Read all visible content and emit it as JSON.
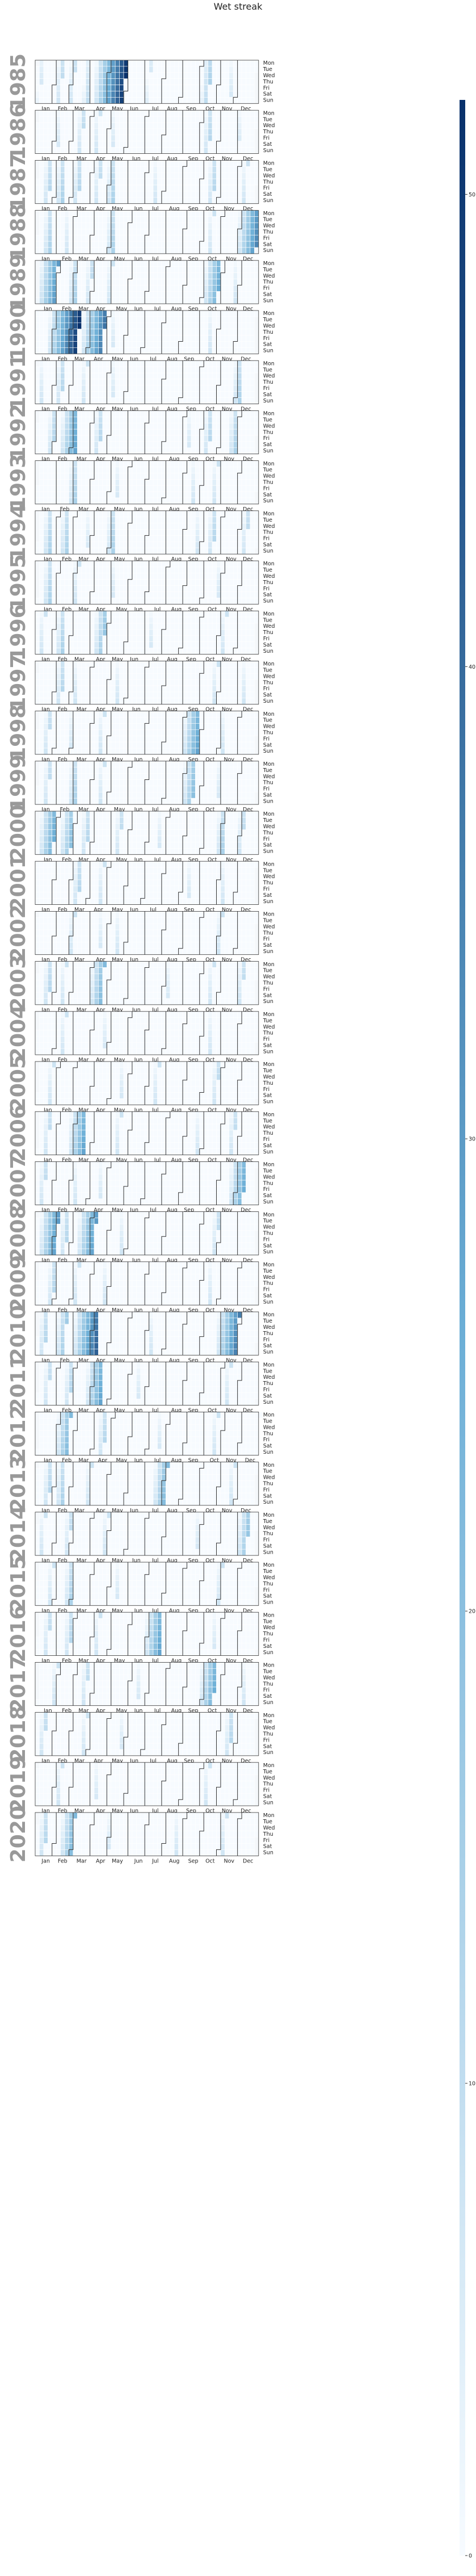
{
  "chart_data": {
    "type": "heatmap",
    "title": "Wet streak",
    "years": [
      1985,
      1986,
      1987,
      1988,
      1989,
      1990,
      1991,
      1992,
      1993,
      1994,
      1995,
      1996,
      1997,
      1998,
      1999,
      2000,
      2001,
      2002,
      2003,
      2004,
      2005,
      2006,
      2007,
      2008,
      2009,
      2010,
      2011,
      2012,
      2013,
      2014,
      2015,
      2016,
      2017,
      2018,
      2019,
      2020
    ],
    "month_labels": [
      "Jan",
      "Feb",
      "Mar",
      "Apr",
      "May",
      "Jun",
      "Jul",
      "Aug",
      "Sep",
      "Oct",
      "Nov",
      "Dec"
    ],
    "day_labels": [
      "Mon",
      "Tue",
      "Wed",
      "Thu",
      "Fri",
      "Sat",
      "Sun"
    ],
    "colorbar": {
      "min": 0,
      "max": 52,
      "ticks": [
        0,
        10,
        20,
        30,
        40,
        50
      ]
    },
    "colors": {
      "low": "#f7fbff",
      "mid": "#6baed6",
      "high": "#08306b",
      "year_label": "#999999",
      "month_border": "#333333"
    },
    "streaks": [
      {
        "year": 1985,
        "start": "1985-01-05",
        "length": 6
      },
      {
        "year": 1985,
        "start": "1985-02-04",
        "length": 10
      },
      {
        "year": 1985,
        "start": "1985-02-25",
        "length": 9
      },
      {
        "year": 1985,
        "start": "1985-03-22",
        "length": 10
      },
      {
        "year": 1985,
        "start": "1985-04-08",
        "length": 52
      },
      {
        "year": 1985,
        "start": "1985-07-04",
        "length": 6
      },
      {
        "year": 1985,
        "start": "1985-10-04",
        "length": 14
      },
      {
        "year": 1985,
        "start": "1985-11-18",
        "length": 6
      },
      {
        "year": 1986,
        "start": "1986-02-03",
        "length": 6
      },
      {
        "year": 1986,
        "start": "1986-03-10",
        "length": 10
      },
      {
        "year": 1986,
        "start": "1986-04-07",
        "length": 8
      },
      {
        "year": 1986,
        "start": "1986-05-05",
        "length": 6
      },
      {
        "year": 1986,
        "start": "1986-10-06",
        "length": 12
      },
      {
        "year": 1986,
        "start": "1986-12-01",
        "length": 5
      },
      {
        "year": 1987,
        "start": "1987-01-12",
        "length": 12
      },
      {
        "year": 1987,
        "start": "1987-02-02",
        "length": 14
      },
      {
        "year": 1987,
        "start": "1987-03-02",
        "length": 12
      },
      {
        "year": 1987,
        "start": "1987-04-06",
        "length": 10
      },
      {
        "year": 1987,
        "start": "1987-04-27",
        "length": 14
      },
      {
        "year": 1987,
        "start": "1987-07-13",
        "length": 7
      },
      {
        "year": 1987,
        "start": "1987-10-12",
        "length": 12
      },
      {
        "year": 1987,
        "start": "1987-12-07",
        "length": 8
      },
      {
        "year": 1988,
        "start": "1988-01-11",
        "length": 14
      },
      {
        "year": 1988,
        "start": "1988-02-15",
        "length": 7
      },
      {
        "year": 1988,
        "start": "1988-04-25",
        "length": 14
      },
      {
        "year": 1988,
        "start": "1988-10-10",
        "length": 8
      },
      {
        "year": 1988,
        "start": "1988-11-28",
        "length": 34
      },
      {
        "year": 1989,
        "start": "1989-01-01",
        "length": 30
      },
      {
        "year": 1989,
        "start": "1989-02-20",
        "length": 14
      },
      {
        "year": 1989,
        "start": "1989-03-20",
        "length": 10
      },
      {
        "year": 1989,
        "start": "1989-04-24",
        "length": 8
      },
      {
        "year": 1989,
        "start": "1989-10-02",
        "length": 26
      },
      {
        "year": 1989,
        "start": "1989-11-20",
        "length": 7
      },
      {
        "year": 1990,
        "start": "1990-01-22",
        "length": 52
      },
      {
        "year": 1990,
        "start": "1990-03-19",
        "length": 38
      },
      {
        "year": 1990,
        "start": "1990-05-07",
        "length": 6
      },
      {
        "year": 1990,
        "start": "1990-10-15",
        "length": 7
      },
      {
        "year": 1991,
        "start": "1991-01-07",
        "length": 7
      },
      {
        "year": 1991,
        "start": "1991-02-04",
        "length": 12
      },
      {
        "year": 1991,
        "start": "1991-03-18",
        "length": 8
      },
      {
        "year": 1991,
        "start": "1991-05-06",
        "length": 6
      },
      {
        "year": 1991,
        "start": "1991-11-25",
        "length": 14
      },
      {
        "year": 1992,
        "start": "1992-01-20",
        "length": 12
      },
      {
        "year": 1992,
        "start": "1992-02-10",
        "length": 28
      },
      {
        "year": 1992,
        "start": "1992-04-06",
        "length": 12
      },
      {
        "year": 1992,
        "start": "1992-09-07",
        "length": 6
      },
      {
        "year": 1992,
        "start": "1992-10-05",
        "length": 12
      },
      {
        "year": 1992,
        "start": "1992-11-16",
        "length": 14
      },
      {
        "year": 1993,
        "start": "1993-02-22",
        "length": 14
      },
      {
        "year": 1993,
        "start": "1993-05-10",
        "length": 6
      },
      {
        "year": 1993,
        "start": "1993-09-13",
        "length": 7
      },
      {
        "year": 1993,
        "start": "1993-10-18",
        "length": 8
      },
      {
        "year": 1994,
        "start": "1994-01-10",
        "length": 14
      },
      {
        "year": 1994,
        "start": "1994-02-07",
        "length": 14
      },
      {
        "year": 1994,
        "start": "1994-03-21",
        "length": 6
      },
      {
        "year": 1994,
        "start": "1994-04-25",
        "length": 14
      },
      {
        "year": 1994,
        "start": "1994-09-19",
        "length": 7
      },
      {
        "year": 1994,
        "start": "1994-10-10",
        "length": 12
      },
      {
        "year": 1994,
        "start": "1994-12-05",
        "length": 10
      },
      {
        "year": 1995,
        "start": "1995-01-09",
        "length": 14
      },
      {
        "year": 1995,
        "start": "1995-02-27",
        "length": 8
      },
      {
        "year": 1995,
        "start": "1995-05-01",
        "length": 6
      },
      {
        "year": 1995,
        "start": "1995-10-23",
        "length": 6
      },
      {
        "year": 1996,
        "start": "1996-01-08",
        "length": 8
      },
      {
        "year": 1996,
        "start": "1996-02-05",
        "length": 14
      },
      {
        "year": 1996,
        "start": "1996-04-08",
        "length": 18
      },
      {
        "year": 1996,
        "start": "1996-07-08",
        "length": 6
      },
      {
        "year": 1996,
        "start": "1996-11-04",
        "length": 8
      },
      {
        "year": 1997,
        "start": "1997-02-03",
        "length": 12
      },
      {
        "year": 1997,
        "start": "1997-03-03",
        "length": 7
      },
      {
        "year": 1997,
        "start": "1997-05-12",
        "length": 7
      },
      {
        "year": 1997,
        "start": "1997-10-20",
        "length": 8
      },
      {
        "year": 1997,
        "start": "1997-12-08",
        "length": 7
      },
      {
        "year": 1998,
        "start": "1998-01-12",
        "length": 10
      },
      {
        "year": 1998,
        "start": "1998-02-23",
        "length": 6
      },
      {
        "year": 1998,
        "start": "1998-04-13",
        "length": 8
      },
      {
        "year": 1998,
        "start": "1998-08-31",
        "length": 28
      },
      {
        "year": 1998,
        "start": "1998-11-02",
        "length": 7
      },
      {
        "year": 1999,
        "start": "1999-01-11",
        "length": 10
      },
      {
        "year": 1999,
        "start": "1999-02-22",
        "length": 14
      },
      {
        "year": 1999,
        "start": "1999-04-12",
        "length": 8
      },
      {
        "year": 1999,
        "start": "1999-08-30",
        "length": 20
      },
      {
        "year": 1999,
        "start": "1999-10-25",
        "length": 6
      },
      {
        "year": 2000,
        "start": "2000-01-03",
        "length": 26
      },
      {
        "year": 2000,
        "start": "2000-02-07",
        "length": 20
      },
      {
        "year": 2000,
        "start": "2000-03-13",
        "length": 12
      },
      {
        "year": 2000,
        "start": "2000-05-08",
        "length": 10
      },
      {
        "year": 2000,
        "start": "2000-07-17",
        "length": 6
      },
      {
        "year": 2000,
        "start": "2000-10-23",
        "length": 14
      },
      {
        "year": 2000,
        "start": "2000-11-27",
        "length": 10
      },
      {
        "year": 2001,
        "start": "2001-03-05",
        "length": 12
      },
      {
        "year": 2001,
        "start": "2001-04-16",
        "length": 8
      },
      {
        "year": 2001,
        "start": "2001-09-10",
        "length": 6
      },
      {
        "year": 2001,
        "start": "2001-11-05",
        "length": 7
      },
      {
        "year": 2002,
        "start": "2002-02-25",
        "length": 8
      },
      {
        "year": 2002,
        "start": "2002-04-15",
        "length": 6
      },
      {
        "year": 2002,
        "start": "2002-05-13",
        "length": 7
      },
      {
        "year": 2002,
        "start": "2002-10-28",
        "length": 8
      },
      {
        "year": 2003,
        "start": "2003-01-13",
        "length": 12
      },
      {
        "year": 2003,
        "start": "2003-02-10",
        "length": 8
      },
      {
        "year": 2003,
        "start": "2003-03-31",
        "length": 22
      },
      {
        "year": 2003,
        "start": "2003-08-04",
        "length": 6
      },
      {
        "year": 2003,
        "start": "2003-10-13",
        "length": 8
      },
      {
        "year": 2003,
        "start": "2003-12-01",
        "length": 10
      },
      {
        "year": 2004,
        "start": "2004-02-09",
        "length": 8
      },
      {
        "year": 2004,
        "start": "2004-04-19",
        "length": 6
      },
      {
        "year": 2004,
        "start": "2004-10-11",
        "length": 7
      },
      {
        "year": 2005,
        "start": "2005-01-17",
        "length": 8
      },
      {
        "year": 2005,
        "start": "2005-05-16",
        "length": 6
      },
      {
        "year": 2005,
        "start": "2005-07-11",
        "length": 8
      },
      {
        "year": 2005,
        "start": "2005-10-17",
        "length": 10
      },
      {
        "year": 2006,
        "start": "2006-01-09",
        "length": 10
      },
      {
        "year": 2006,
        "start": "2006-02-20",
        "length": 28
      },
      {
        "year": 2006,
        "start": "2006-05-08",
        "length": 8
      },
      {
        "year": 2006,
        "start": "2006-09-18",
        "length": 7
      },
      {
        "year": 2006,
        "start": "2006-11-13",
        "length": 10
      },
      {
        "year": 2007,
        "start": "2007-01-08",
        "length": 10
      },
      {
        "year": 2007,
        "start": "2007-03-05",
        "length": 7
      },
      {
        "year": 2007,
        "start": "2007-04-16",
        "length": 6
      },
      {
        "year": 2007,
        "start": "2007-11-19",
        "length": 26
      },
      {
        "year": 2008,
        "start": "2008-01-07",
        "length": 30
      },
      {
        "year": 2008,
        "start": "2008-02-11",
        "length": 12
      },
      {
        "year": 2008,
        "start": "2008-03-10",
        "length": 30
      },
      {
        "year": 2008,
        "start": "2008-05-19",
        "length": 7
      },
      {
        "year": 2008,
        "start": "2008-10-20",
        "length": 10
      },
      {
        "year": 2009,
        "start": "2009-01-19",
        "length": 12
      },
      {
        "year": 2009,
        "start": "2009-03-02",
        "length": 8
      },
      {
        "year": 2009,
        "start": "2009-04-20",
        "length": 7
      },
      {
        "year": 2009,
        "start": "2009-10-12",
        "length": 7
      },
      {
        "year": 2010,
        "start": "2010-01-04",
        "length": 12
      },
      {
        "year": 2010,
        "start": "2010-02-01",
        "length": 16
      },
      {
        "year": 2010,
        "start": "2010-03-01",
        "length": 42
      },
      {
        "year": 2010,
        "start": "2010-07-05",
        "length": 7
      },
      {
        "year": 2010,
        "start": "2010-10-25",
        "length": 36
      },
      {
        "year": 2011,
        "start": "2011-01-10",
        "length": 10
      },
      {
        "year": 2011,
        "start": "2011-02-14",
        "length": 12
      },
      {
        "year": 2011,
        "start": "2011-03-21",
        "length": 28
      },
      {
        "year": 2011,
        "start": "2011-06-13",
        "length": 6
      },
      {
        "year": 2011,
        "start": "2011-11-07",
        "length": 8
      },
      {
        "year": 2012,
        "start": "2012-01-30",
        "length": 22
      },
      {
        "year": 2012,
        "start": "2012-04-09",
        "length": 12
      },
      {
        "year": 2012,
        "start": "2012-07-16",
        "length": 6
      },
      {
        "year": 2012,
        "start": "2012-10-15",
        "length": 8
      },
      {
        "year": 2013,
        "start": "2013-01-14",
        "length": 12
      },
      {
        "year": 2013,
        "start": "2013-02-04",
        "length": 14
      },
      {
        "year": 2013,
        "start": "2013-03-25",
        "length": 8
      },
      {
        "year": 2013,
        "start": "2013-07-15",
        "length": 22
      },
      {
        "year": 2013,
        "start": "2013-11-18",
        "length": 8
      },
      {
        "year": 2014,
        "start": "2014-01-06",
        "length": 8
      },
      {
        "year": 2014,
        "start": "2014-02-17",
        "length": 10
      },
      {
        "year": 2014,
        "start": "2014-04-21",
        "length": 8
      },
      {
        "year": 2014,
        "start": "2014-09-22",
        "length": 6
      },
      {
        "year": 2014,
        "start": "2014-12-01",
        "length": 18
      },
      {
        "year": 2015,
        "start": "2015-01-19",
        "length": 8
      },
      {
        "year": 2015,
        "start": "2015-02-16",
        "length": 14
      },
      {
        "year": 2015,
        "start": "2015-05-11",
        "length": 6
      },
      {
        "year": 2015,
        "start": "2015-10-26",
        "length": 8
      },
      {
        "year": 2016,
        "start": "2016-01-11",
        "length": 10
      },
      {
        "year": 2016,
        "start": "2016-02-15",
        "length": 12
      },
      {
        "year": 2016,
        "start": "2016-04-04",
        "length": 8
      },
      {
        "year": 2016,
        "start": "2016-06-27",
        "length": 28
      },
      {
        "year": 2016,
        "start": "2016-10-17",
        "length": 6
      },
      {
        "year": 2017,
        "start": "2017-01-23",
        "length": 8
      },
      {
        "year": 2017,
        "start": "2017-03-13",
        "length": 10
      },
      {
        "year": 2017,
        "start": "2017-06-12",
        "length": 6
      },
      {
        "year": 2017,
        "start": "2017-09-25",
        "length": 26
      },
      {
        "year": 2017,
        "start": "2017-12-04",
        "length": 7
      },
      {
        "year": 2018,
        "start": "2018-01-08",
        "length": 10
      },
      {
        "year": 2018,
        "start": "2018-03-19",
        "length": 8
      },
      {
        "year": 2018,
        "start": "2018-05-21",
        "length": 6
      },
      {
        "year": 2018,
        "start": "2018-11-12",
        "length": 12
      },
      {
        "year": 2019,
        "start": "2019-02-04",
        "length": 8
      },
      {
        "year": 2019,
        "start": "2019-04-08",
        "length": 6
      },
      {
        "year": 2019,
        "start": "2019-10-07",
        "length": 8
      },
      {
        "year": 2020,
        "start": "2020-01-06",
        "length": 12
      },
      {
        "year": 2020,
        "start": "2020-02-10",
        "length": 22
      },
      {
        "year": 2020,
        "start": "2020-04-27",
        "length": 6
      },
      {
        "year": 2020,
        "start": "2020-08-17",
        "length": 7
      },
      {
        "year": 2020,
        "start": "2020-11-02",
        "length": 8
      }
    ]
  }
}
